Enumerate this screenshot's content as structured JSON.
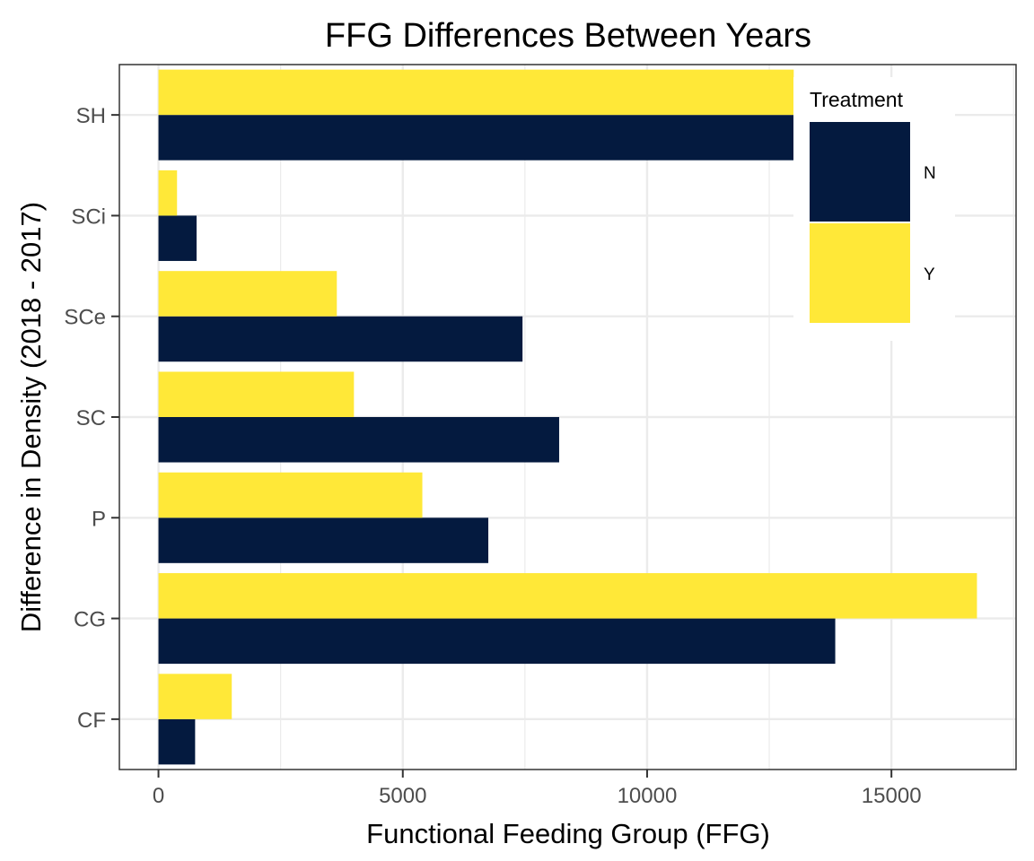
{
  "chart_data": {
    "type": "bar",
    "orientation": "horizontal",
    "title": "FFG Differences Between Years",
    "xlabel": "Functional Feeding Group (FFG)",
    "ylabel": "Difference in Density (2018 - 2017)",
    "categories": [
      "CF",
      "CG",
      "P",
      "SC",
      "SCe",
      "SCi",
      "SH"
    ],
    "series": [
      {
        "name": "N",
        "color": "#041a3f",
        "values": [
          750,
          13850,
          6750,
          8200,
          7450,
          780,
          13000
        ]
      },
      {
        "name": "Y",
        "color": "#ffe838",
        "values": [
          1500,
          16750,
          5400,
          4000,
          3650,
          380,
          13000
        ]
      }
    ],
    "xlim": [
      -800,
      17550
    ],
    "xticks": [
      0,
      5000,
      10000,
      15000
    ],
    "xtick_labels": [
      "0",
      "5000",
      "10000",
      "15000"
    ],
    "grid": true,
    "legend": {
      "title": "Treatment",
      "placement": "top-right inside"
    }
  }
}
